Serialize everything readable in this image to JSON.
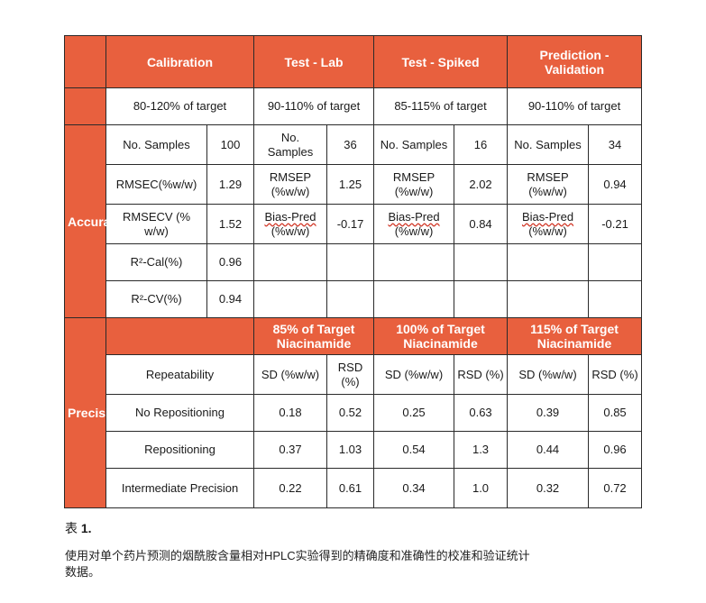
{
  "header": {
    "calibration": "Calibration",
    "test_lab": "Test - Lab",
    "test_spiked": "Test - Spiked",
    "prediction": "Prediction - Validation"
  },
  "targets": {
    "calibration": "80-120% of target",
    "test_lab": "90-110% of target",
    "test_spiked": "85-115% of target",
    "prediction": "90-110% of target"
  },
  "accuracy": {
    "label": "Accuracy",
    "rows": [
      {
        "cal_label": "No. Samples",
        "cal_value": "100",
        "lab_label": "No. Samples",
        "lab_value": "36",
        "spk_label": "No. Samples",
        "spk_value": "16",
        "pred_label": "No. Samples",
        "pred_value": "34"
      },
      {
        "cal_label": "RMSEC(%w/w)",
        "cal_value": "1.29",
        "lab_label": "RMSEP (%w/w)",
        "lab_value": "1.25",
        "spk_label": "RMSEP (%w/w)",
        "spk_value": "2.02",
        "pred_label": "RMSEP (%w/w)",
        "pred_value": "0.94"
      },
      {
        "cal_label": "RMSECV (% w/w)",
        "cal_value": "1.52",
        "lab_label_a": "Bias-Pred",
        "lab_label_b": "(%w/w)",
        "lab_value": "-0.17",
        "spk_label_a": "Bias-Pred",
        "spk_label_b": "(%w/w)",
        "spk_value": "0.84",
        "pred_label_a": "Bias-Pred",
        "pred_label_b": "(%w/w)",
        "pred_value": "-0.21"
      },
      {
        "cal_label": "R²-Cal(%)",
        "cal_value": "0.96"
      },
      {
        "cal_label": "R²-CV(%)",
        "cal_value": "0.94"
      }
    ]
  },
  "precision": {
    "label": "Precision",
    "groups": [
      "85% of Target Niacinamide",
      "100% of Target Niacinamide",
      "115% of Target Niacinamide"
    ],
    "sub_header": {
      "row_label": "Repeatability",
      "sd": "SD (%w/w)",
      "rsd": "RSD (%)"
    },
    "rows": [
      {
        "label": "No Repositioning",
        "values": [
          "0.18",
          "0.52",
          "0.25",
          "0.63",
          "0.39",
          "0.85"
        ]
      },
      {
        "label": "Repositioning",
        "values": [
          "0.37",
          "1.03",
          "0.54",
          "1.3",
          "0.44",
          "0.96"
        ]
      },
      {
        "label": "Intermediate Precision",
        "values": [
          "0.22",
          "0.61",
          "0.34",
          "1.0",
          "0.32",
          "0.72"
        ]
      }
    ]
  },
  "caption": {
    "prefix": "表",
    "number": "1.",
    "text": "使用对单个药片预测的烟酰胺含量相对HPLC实验得到的精确度和准确性的校准和验证统计数据。"
  }
}
